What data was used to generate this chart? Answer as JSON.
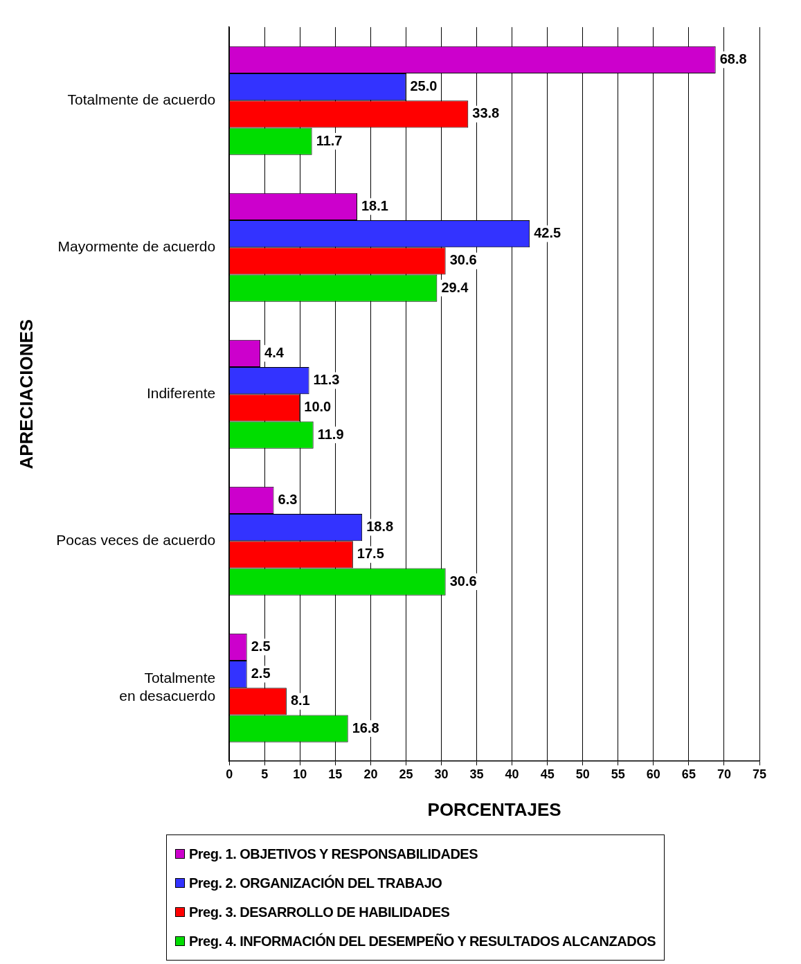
{
  "chart_data": {
    "type": "bar",
    "orientation": "horizontal",
    "xlabel": "PORCENTAJES",
    "ylabel": "APRECIACIONES",
    "categories": [
      "Totalmente de acuerdo",
      "Mayormente de acuerdo",
      "Indiferente",
      "Pocas veces de acuerdo",
      "Totalmente en desacuerdo"
    ],
    "series": [
      {
        "name": "Preg. 1. OBJETIVOS Y RESPONSABILIDADES",
        "color": "#cc00cc",
        "values": [
          68.8,
          18.1,
          4.4,
          6.3,
          2.5
        ],
        "value_labels": [
          "68.8",
          "18.1",
          "4.4",
          "6.3",
          "2.5"
        ]
      },
      {
        "name": "Preg. 2. ORGANIZACIÓN DEL TRABAJO",
        "color": "#3333ff",
        "values": [
          25.0,
          42.5,
          11.3,
          18.8,
          2.5
        ],
        "value_labels": [
          "25.0",
          "42.5",
          "11.3",
          "18.8",
          "2.5"
        ]
      },
      {
        "name": "Preg. 3. DESARROLLO DE HABILIDADES",
        "color": "#ff0000",
        "values": [
          33.8,
          30.6,
          10.0,
          17.5,
          8.1
        ],
        "value_labels": [
          "33.8",
          "30.6",
          "10.0",
          "17.5",
          "8.1"
        ]
      },
      {
        "name": "Preg. 4. INFORMACIÓN DEL DESEMPEÑO Y RESULTADOS ALCANZADOS",
        "color": "#00dd00",
        "values": [
          11.7,
          29.4,
          11.9,
          30.6,
          16.8
        ],
        "value_labels": [
          "11.7",
          "29.4",
          "11.9",
          "30.6",
          "16.8"
        ]
      }
    ],
    "xlim": [
      0,
      75
    ],
    "xticks": [
      0,
      5,
      10,
      15,
      20,
      25,
      30,
      35,
      40,
      45,
      50,
      55,
      60,
      65,
      70,
      75
    ],
    "grid": "x",
    "legend": "bottom"
  }
}
